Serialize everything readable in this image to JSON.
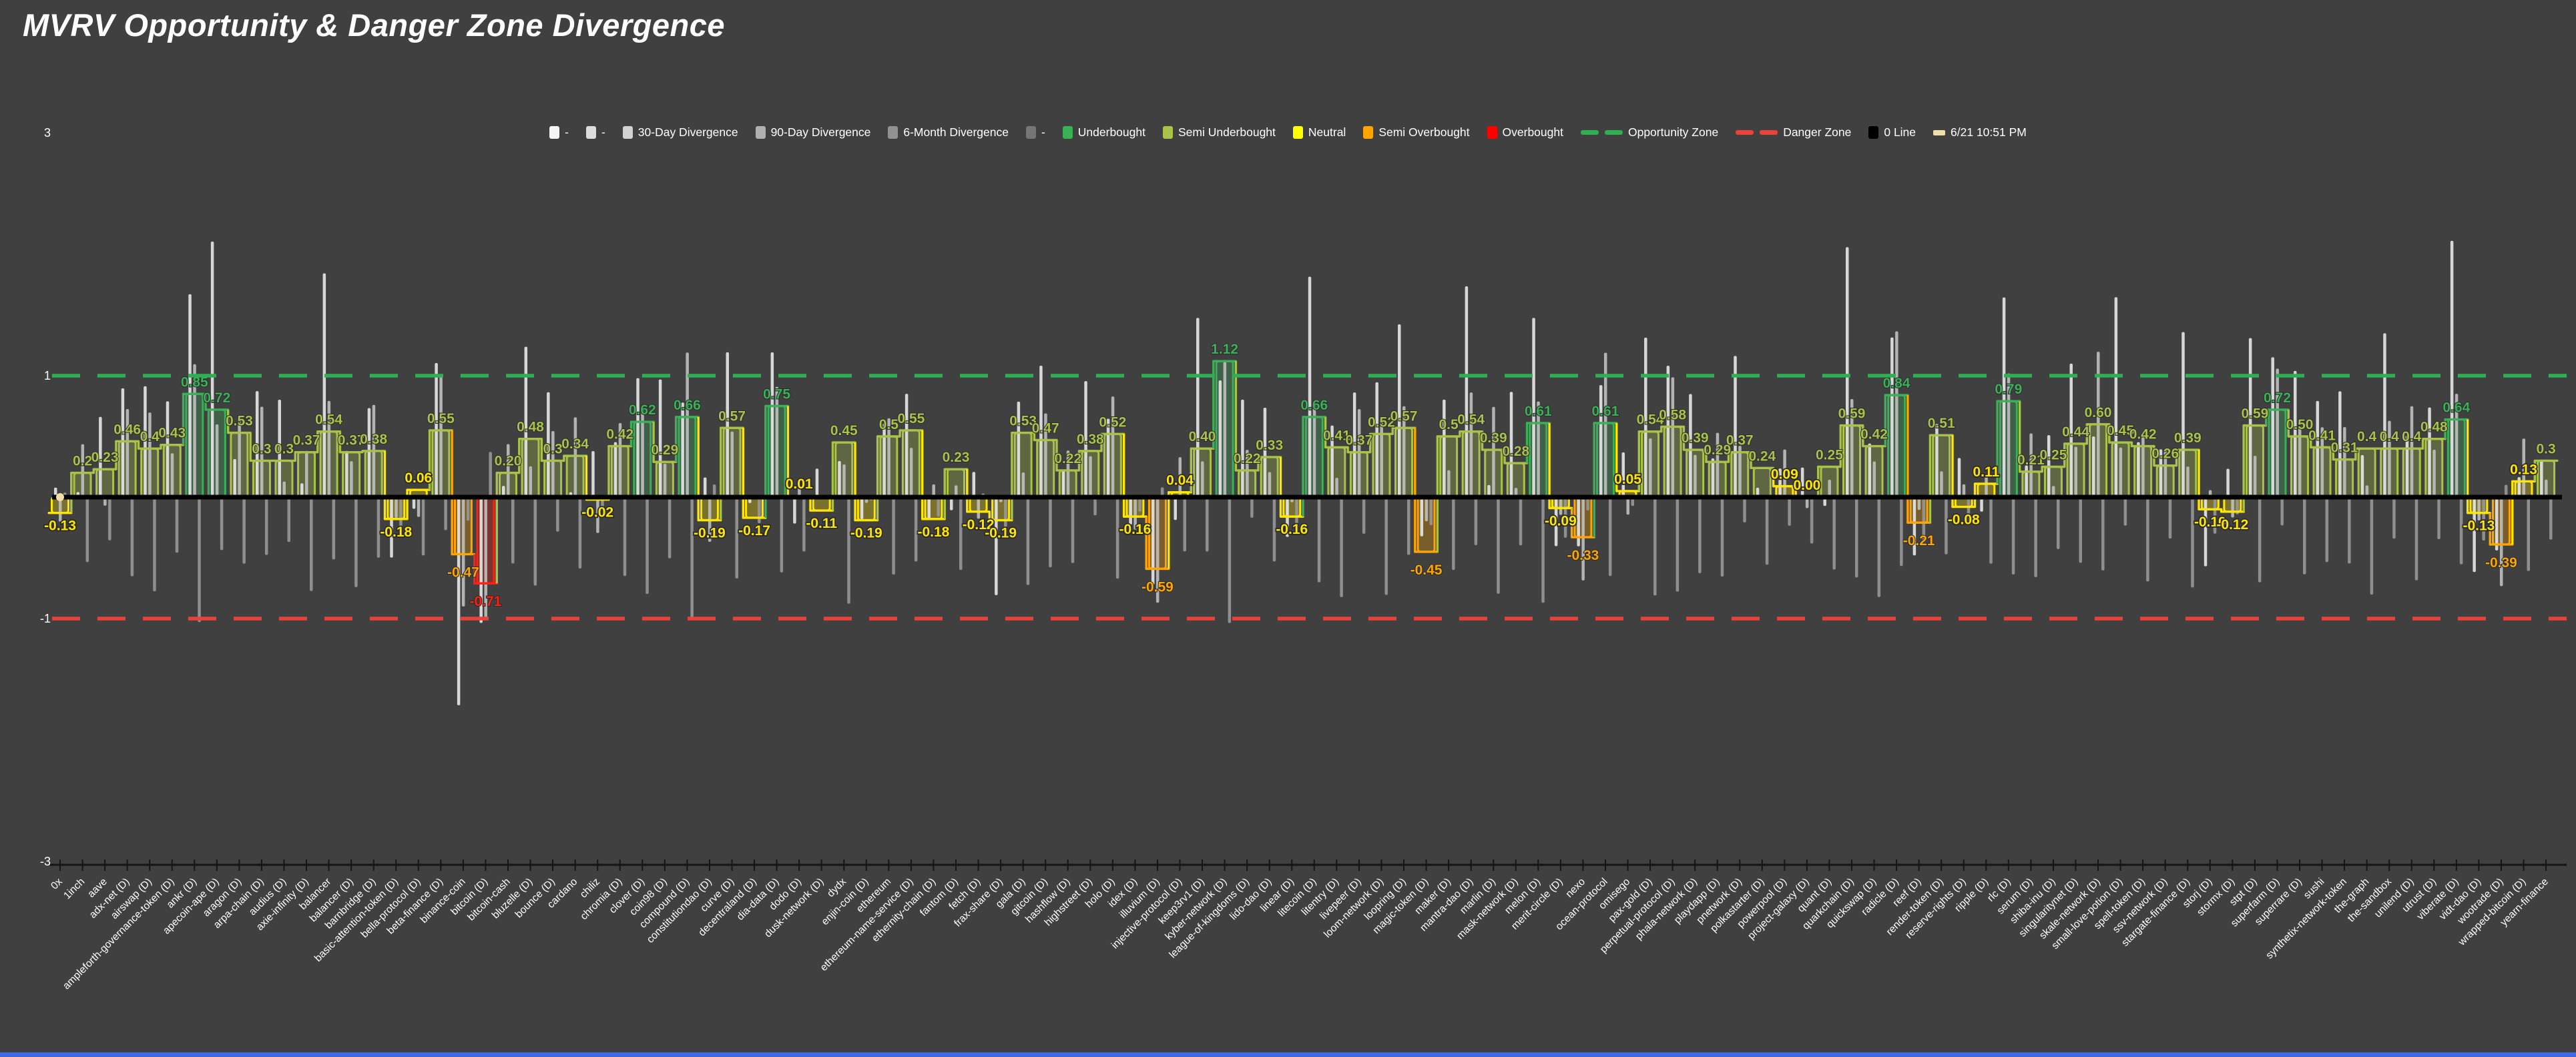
{
  "title": "MVRV Opportunity & Danger Zone Divergence",
  "background_color": "#404040",
  "timestamp_label": "6/21 10:51 PM",
  "legend": {
    "items": [
      {
        "label": "-",
        "swatch": "square",
        "color": "#f5f5f5"
      },
      {
        "label": "-",
        "swatch": "square",
        "color": "#dcdcdc"
      },
      {
        "label": "30-Day Divergence",
        "swatch": "square",
        "color": "#d2d2d2"
      },
      {
        "label": "90-Day Divergence",
        "swatch": "square",
        "color": "#b0b0b0"
      },
      {
        "label": "6-Month Divergence",
        "swatch": "square",
        "color": "#929292"
      },
      {
        "label": "-",
        "swatch": "square",
        "color": "#767676"
      },
      {
        "label": "Underbought",
        "swatch": "square",
        "color": "#3cb059"
      },
      {
        "label": "Semi Underbought",
        "swatch": "square",
        "color": "#a8c24a"
      },
      {
        "label": "Neutral",
        "swatch": "square",
        "color": "#ffff00"
      },
      {
        "label": "Semi Overbought",
        "swatch": "square",
        "color": "#ffa500"
      },
      {
        "label": "Overbought",
        "swatch": "square",
        "color": "#ff0000"
      },
      {
        "label": "Opportunity Zone",
        "swatch": "dashes",
        "color": "#2fae54"
      },
      {
        "label": "Danger Zone",
        "swatch": "dashes",
        "color": "#e8433a"
      },
      {
        "label": "0 Line",
        "swatch": "square",
        "color": "#000000"
      },
      {
        "label": "6/21 10:51 PM",
        "swatch": "dash",
        "color": "#f0dfa6"
      }
    ]
  },
  "y_axis": {
    "ticks": [
      {
        "label": "3",
        "value": 3
      },
      {
        "label": "1",
        "value": 1
      },
      {
        "label": "-1",
        "value": -1
      },
      {
        "label": "-3",
        "value": -3
      }
    ]
  },
  "chart_data": {
    "type": "bar",
    "title": "MVRV Opportunity & Danger Zone Divergence",
    "xlabel": "",
    "ylabel": "",
    "ylim": [
      -3,
      3
    ],
    "grid": false,
    "legend_position": "top",
    "opportunity_zone_y": 1,
    "danger_zone_y": -1,
    "zero_line_y": 0,
    "zone_thresholds": {
      "underbought_above": 0.6,
      "semi_underbought_above": 0.2,
      "neutral_above": -0.2,
      "semi_overbought_above": -0.6
    },
    "zone_colors": {
      "underbought": "#3cb059",
      "semi_underbought": "#a8c24a",
      "neutral": "#ffe600",
      "semi_overbought": "#ffa500",
      "overbought": "#ff2012",
      "whiskers": [
        "#e8e8e8",
        "#c0c0c0",
        "#989898"
      ],
      "opportunity_line": "#2fae54",
      "danger_line": "#e8433a",
      "zero_line": "#000000",
      "timestamp_marker": "#f0dfa6"
    },
    "points": [
      {
        "name": "0x",
        "value": -0.13,
        "label": "-0.13"
      },
      {
        "name": "1inch",
        "value": 0.2,
        "label": "0.2"
      },
      {
        "name": "aave",
        "value": 0.23,
        "label": "0.23"
      },
      {
        "name": "adx-net (D)",
        "value": 0.46,
        "label": "0.46"
      },
      {
        "name": "airswap (D)",
        "value": 0.4,
        "label": "0.4"
      },
      {
        "name": "ampleforth-governance-token (D)",
        "value": 0.43,
        "label": "0.43"
      },
      {
        "name": "ankr (D)",
        "value": 0.85,
        "label": "0.85"
      },
      {
        "name": "apecoin-ape (D)",
        "value": 0.72,
        "label": "0.72"
      },
      {
        "name": "aragon (D)",
        "value": 0.53,
        "label": "0.53"
      },
      {
        "name": "arpa-chain (D)",
        "value": 0.3,
        "label": "0.3"
      },
      {
        "name": "audius (D)",
        "value": 0.3,
        "label": "0.3"
      },
      {
        "name": "axie-infinity (D)",
        "value": 0.37,
        "label": "0.37"
      },
      {
        "name": "balancer",
        "value": 0.54,
        "label": "0.54"
      },
      {
        "name": "balancer (D)",
        "value": 0.37,
        "label": "0.37"
      },
      {
        "name": "barnbridge (D)",
        "value": 0.38,
        "label": "0.38"
      },
      {
        "name": "basic-attention-token (D)",
        "value": -0.18,
        "label": "-0.18"
      },
      {
        "name": "bella-protocol (D)",
        "value": 0.06,
        "label": "0.06"
      },
      {
        "name": "beta-finance (D)",
        "value": 0.55,
        "label": "0.55"
      },
      {
        "name": "binance-coin",
        "value": -0.47,
        "label": "-0.47"
      },
      {
        "name": "bitcoin (D)",
        "value": -0.71,
        "label": "-0.71"
      },
      {
        "name": "bitcoin-cash",
        "value": 0.2,
        "label": "0.20"
      },
      {
        "name": "bluzelle (D)",
        "value": 0.48,
        "label": "0.48"
      },
      {
        "name": "bounce (D)",
        "value": 0.3,
        "label": "0.3"
      },
      {
        "name": "cardano",
        "value": 0.34,
        "label": "0.34"
      },
      {
        "name": "chiliz",
        "value": -0.02,
        "label": "-0.02"
      },
      {
        "name": "chromia (D)",
        "value": 0.42,
        "label": "0.42"
      },
      {
        "name": "clover (D)",
        "value": 0.62,
        "label": "0.62"
      },
      {
        "name": "coin98 (D)",
        "value": 0.29,
        "label": "0.29"
      },
      {
        "name": "compound (D)",
        "value": 0.66,
        "label": "0.66"
      },
      {
        "name": "constitutiondao (D)",
        "value": -0.19,
        "label": "-0.19"
      },
      {
        "name": "curve (D)",
        "value": 0.57,
        "label": "0.57"
      },
      {
        "name": "decentraland (D)",
        "value": -0.17,
        "label": "-0.17"
      },
      {
        "name": "dia-data (D)",
        "value": 0.75,
        "label": "0.75"
      },
      {
        "name": "dodo (D)",
        "value": 0.01,
        "label": "0.01"
      },
      {
        "name": "dusk-network (D)",
        "value": -0.11,
        "label": "-0.11"
      },
      {
        "name": "dydx",
        "value": 0.45,
        "label": "0.45"
      },
      {
        "name": "enjin-coin (D)",
        "value": -0.19,
        "label": "-0.19"
      },
      {
        "name": "ethereum",
        "value": 0.5,
        "label": "0.5"
      },
      {
        "name": "ethereum-name-service (D)",
        "value": 0.55,
        "label": "0.55"
      },
      {
        "name": "ethernity-chain (D)",
        "value": -0.18,
        "label": "-0.18"
      },
      {
        "name": "fantom (D)",
        "value": 0.23,
        "label": "0.23"
      },
      {
        "name": "fetch (D)",
        "value": -0.12,
        "label": "-0.12"
      },
      {
        "name": "frax-share (D)",
        "value": -0.19,
        "label": "-0.19"
      },
      {
        "name": "gala (D)",
        "value": 0.53,
        "label": "0.53"
      },
      {
        "name": "gitcoin (D)",
        "value": 0.47,
        "label": "0.47"
      },
      {
        "name": "hashflow (D)",
        "value": 0.22,
        "label": "0.22"
      },
      {
        "name": "highstreet (D)",
        "value": 0.38,
        "label": "0.38"
      },
      {
        "name": "holo (D)",
        "value": 0.52,
        "label": "0.52"
      },
      {
        "name": "idex (D)",
        "value": -0.16,
        "label": "-0.16"
      },
      {
        "name": "illuvium (D)",
        "value": -0.59,
        "label": "-0.59"
      },
      {
        "name": "injective-protocol (D)",
        "value": 0.04,
        "label": "0.04"
      },
      {
        "name": "keep3rv1 (D)",
        "value": 0.4,
        "label": "0.40"
      },
      {
        "name": "kyber-network (D)",
        "value": 1.12,
        "label": "1.12"
      },
      {
        "name": "league-of-kingdoms (D)",
        "value": 0.22,
        "label": "0.22"
      },
      {
        "name": "lido-dao (D)",
        "value": 0.33,
        "label": "0.33"
      },
      {
        "name": "linear (D)",
        "value": -0.16,
        "label": "-0.16"
      },
      {
        "name": "litecoin (D)",
        "value": 0.66,
        "label": "0.66"
      },
      {
        "name": "litentry (D)",
        "value": 0.41,
        "label": "0.41"
      },
      {
        "name": "livepeer (D)",
        "value": 0.37,
        "label": "0.37"
      },
      {
        "name": "loom-network (D)",
        "value": 0.52,
        "label": "0.52"
      },
      {
        "name": "loopring (D)",
        "value": 0.57,
        "label": "0.57"
      },
      {
        "name": "magic-token (D)",
        "value": -0.45,
        "label": "-0.45"
      },
      {
        "name": "maker (D)",
        "value": 0.5,
        "label": "0.5"
      },
      {
        "name": "mantra-dao (D)",
        "value": 0.54,
        "label": "0.54"
      },
      {
        "name": "marlin (D)",
        "value": 0.39,
        "label": "0.39"
      },
      {
        "name": "mask-network (D)",
        "value": 0.28,
        "label": "0.28"
      },
      {
        "name": "melon (D)",
        "value": 0.61,
        "label": "0.61"
      },
      {
        "name": "merit-circle (D)",
        "value": -0.09,
        "label": "-0.09"
      },
      {
        "name": "nexo",
        "value": -0.33,
        "label": "-0.33"
      },
      {
        "name": "ocean-protocol",
        "value": 0.61,
        "label": "0.61"
      },
      {
        "name": "omisego",
        "value": 0.05,
        "label": "0.05"
      },
      {
        "name": "pax-gold (D)",
        "value": 0.54,
        "label": "0.54"
      },
      {
        "name": "perpetual-protocol (D)",
        "value": 0.58,
        "label": "0.58"
      },
      {
        "name": "phala-network (D)",
        "value": 0.39,
        "label": "0.39"
      },
      {
        "name": "playdapp (D)",
        "value": 0.29,
        "label": "0.29"
      },
      {
        "name": "pnetwork (D)",
        "value": 0.37,
        "label": "0.37"
      },
      {
        "name": "polkastarter (D)",
        "value": 0.24,
        "label": "0.24"
      },
      {
        "name": "powerpool (D)",
        "value": 0.09,
        "label": "0.09"
      },
      {
        "name": "project-galaxy (D)",
        "value": 0.0,
        "label": "0.00"
      },
      {
        "name": "quant (D)",
        "value": 0.25,
        "label": "0.25"
      },
      {
        "name": "quarkchain (D)",
        "value": 0.59,
        "label": "0.59"
      },
      {
        "name": "quickswap (D)",
        "value": 0.42,
        "label": "0.42"
      },
      {
        "name": "radicle (D)",
        "value": 0.84,
        "label": "0.84"
      },
      {
        "name": "reef (D)",
        "value": -0.21,
        "label": "-0.21"
      },
      {
        "name": "render-token (D)",
        "value": 0.51,
        "label": "0.51"
      },
      {
        "name": "reserve-rights (D)",
        "value": -0.08,
        "label": "-0.08"
      },
      {
        "name": "ripple (D)",
        "value": 0.11,
        "label": "0.11"
      },
      {
        "name": "rlc (D)",
        "value": 0.79,
        "label": "0.79"
      },
      {
        "name": "serum (D)",
        "value": 0.21,
        "label": "0.21"
      },
      {
        "name": "shiba-inu (D)",
        "value": 0.25,
        "label": "0.25"
      },
      {
        "name": "singularitynet (D)",
        "value": 0.44,
        "label": "0.44"
      },
      {
        "name": "skale-network (D)",
        "value": 0.6,
        "label": "0.60"
      },
      {
        "name": "small-love-potion (D)",
        "value": 0.45,
        "label": "0.45"
      },
      {
        "name": "spell-token (D)",
        "value": 0.42,
        "label": "0.42"
      },
      {
        "name": "ssv-network (D)",
        "value": 0.26,
        "label": "0.26"
      },
      {
        "name": "stargate-finance (D)",
        "value": 0.39,
        "label": "0.39"
      },
      {
        "name": "storj (D)",
        "value": -0.1,
        "label": "-0.10"
      },
      {
        "name": "stormx (D)",
        "value": -0.12,
        "label": "-0.12"
      },
      {
        "name": "stpt (D)",
        "value": 0.59,
        "label": "0.59"
      },
      {
        "name": "superfarm (D)",
        "value": 0.72,
        "label": "0.72"
      },
      {
        "name": "superrare (D)",
        "value": 0.5,
        "label": "0.50"
      },
      {
        "name": "sushi",
        "value": 0.41,
        "label": "0.41"
      },
      {
        "name": "synthetix-network-token",
        "value": 0.31,
        "label": "0.31"
      },
      {
        "name": "the-graph",
        "value": 0.4,
        "label": "0.4"
      },
      {
        "name": "the-sandbox",
        "value": 0.4,
        "label": "0.4"
      },
      {
        "name": "unilend (D)",
        "value": 0.4,
        "label": "0.4"
      },
      {
        "name": "utrust (D)",
        "value": 0.48,
        "label": "0.48"
      },
      {
        "name": "viberate (D)",
        "value": 0.64,
        "label": "0.64"
      },
      {
        "name": "vidt-dao (D)",
        "value": -0.13,
        "label": "-0.13"
      },
      {
        "name": "wootrade (D)",
        "value": -0.39,
        "label": "-0.39"
      },
      {
        "name": "wrapped-bitcoin (D)",
        "value": 0.13,
        "label": "0.13"
      },
      {
        "name": "yearn-finance",
        "value": 0.3,
        "label": "0.3"
      }
    ]
  }
}
